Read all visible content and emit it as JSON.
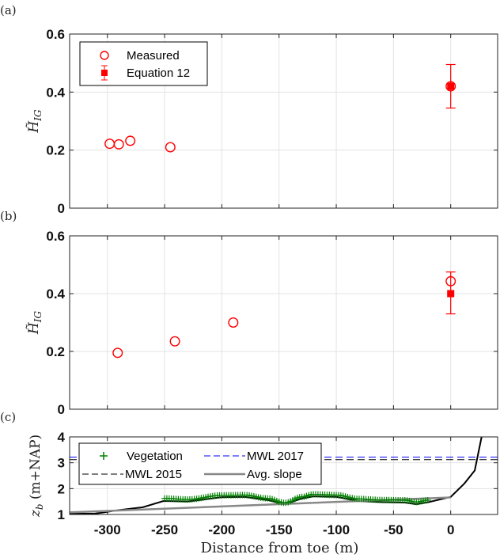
{
  "chart_data": [
    {
      "panel_label": "(a)",
      "type": "scatter",
      "xlim": [
        -333,
        41
      ],
      "ylim": [
        0,
        0.6
      ],
      "yticks": [
        "0",
        "0.2",
        "0.4",
        "0.6"
      ],
      "xticks": [
        -300,
        -250,
        -200,
        -150,
        -100,
        -50,
        0
      ],
      "ylabel_main": "H̃",
      "ylabel_sub": "IG",
      "grid": true,
      "legend": {
        "placement": "top-left",
        "entries": [
          "Measured",
          "Equation 12"
        ]
      },
      "colors": {
        "measured": "#ff0000",
        "equation": "#ff0000"
      },
      "series": [
        {
          "name": "Measured",
          "marker": "open-circle",
          "x": [
            -298,
            -290,
            -280,
            -245,
            0
          ],
          "y": [
            0.222,
            0.22,
            0.232,
            0.21,
            0.42
          ]
        },
        {
          "name": "Equation 12",
          "marker": "filled-square-errorbar",
          "x": [
            0
          ],
          "y": [
            0.42
          ],
          "err_low": [
            0.345
          ],
          "err_high": [
            0.495
          ]
        }
      ]
    },
    {
      "panel_label": "(b)",
      "type": "scatter",
      "xlim": [
        -333,
        41
      ],
      "ylim": [
        0,
        0.6
      ],
      "yticks": [
        "0",
        "0.2",
        "0.4",
        "0.6"
      ],
      "xticks": [
        -300,
        -250,
        -200,
        -150,
        -100,
        -50,
        0
      ],
      "ylabel_main": "H̃",
      "ylabel_sub": "IG",
      "grid": true,
      "series": [
        {
          "name": "Measured",
          "marker": "open-circle",
          "x": [
            -291,
            -241,
            -190,
            0
          ],
          "y": [
            0.195,
            0.235,
            0.3,
            0.443
          ]
        },
        {
          "name": "Equation 12",
          "marker": "filled-square-errorbar",
          "x": [
            0
          ],
          "y": [
            0.4
          ],
          "err_low": [
            0.33
          ],
          "err_high": [
            0.475
          ]
        }
      ]
    },
    {
      "panel_label": "(c)",
      "type": "line",
      "xlim": [
        -333,
        41
      ],
      "ylim": [
        1,
        4
      ],
      "yticks": [
        "1",
        "2",
        "3",
        "4"
      ],
      "xticks": [
        "-300",
        "-250",
        "-200",
        "-150",
        "-100",
        "-50",
        "0"
      ],
      "xlabel": "Distance from toe (m)",
      "ylabel_main": "z",
      "ylabel_sub": "b",
      "ylabel_rest": " (m+NAP)",
      "grid": true,
      "legend": {
        "placement": "top-left",
        "entries": [
          "Vegetation",
          "MWL 2017",
          "MWL 2015",
          "Avg. slope"
        ]
      },
      "colors": {
        "vegetation": "#008000",
        "mwl2017": "#0000ff",
        "mwl2015": "#000000",
        "avg_slope": "#888888",
        "bed": "#000000"
      },
      "bed_profile": {
        "x": [
          -333,
          -311,
          -290,
          -269,
          -251,
          -230,
          -200,
          -180,
          -160,
          -145,
          -130,
          -120,
          -100,
          -80,
          -60,
          -40,
          -30,
          -19,
          0,
          12,
          21,
          27
        ],
        "y": [
          1.03,
          1.03,
          1.17,
          1.28,
          1.52,
          1.5,
          1.67,
          1.68,
          1.56,
          1.4,
          1.62,
          1.7,
          1.68,
          1.52,
          1.48,
          1.46,
          1.4,
          1.48,
          1.68,
          2.2,
          2.7,
          4.0
        ]
      },
      "vegetation": {
        "x_start": -250,
        "x_end": -20,
        "x": [
          -250,
          -230,
          -200,
          -180,
          -160,
          -145,
          -130,
          -120,
          -100,
          -80,
          -60,
          -40,
          -30,
          -20
        ],
        "y": [
          1.62,
          1.58,
          1.74,
          1.75,
          1.62,
          1.45,
          1.68,
          1.78,
          1.75,
          1.6,
          1.56,
          1.55,
          1.48,
          1.55
        ]
      },
      "mwl_2017": 3.22,
      "mwl_2015": 3.12,
      "avg_slope": {
        "x": [
          -333,
          0
        ],
        "y": [
          1.08,
          1.66
        ]
      }
    }
  ]
}
